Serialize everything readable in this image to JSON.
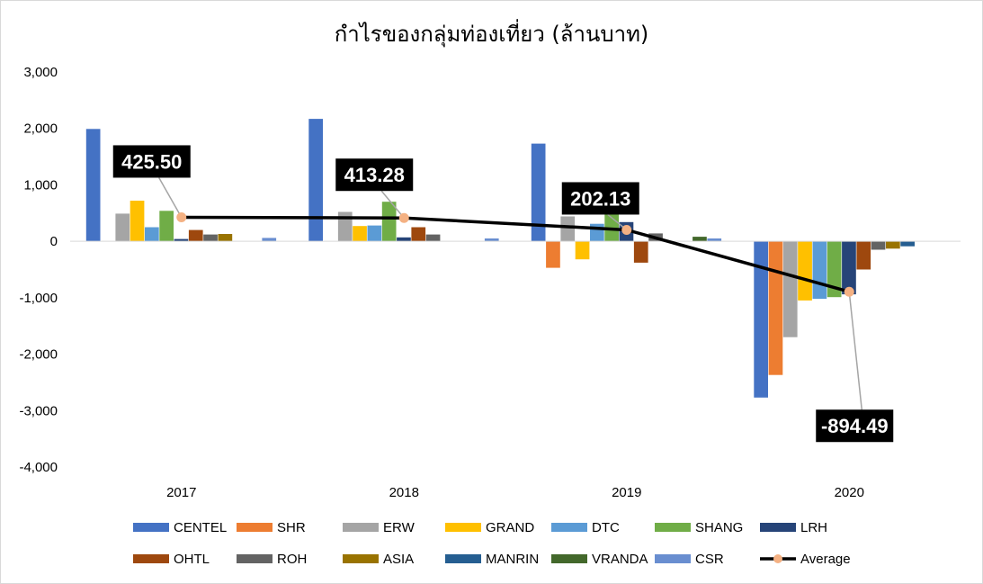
{
  "chart_data": {
    "type": "bar",
    "title": "กำไรของกลุ่มท่องเที่ยว (ล้านบาท)",
    "categories": [
      "2017",
      "2018",
      "2019",
      "2020"
    ],
    "ylim": [
      -4000,
      3000
    ],
    "yticks": [
      3000,
      2000,
      1000,
      0,
      -1000,
      -2000,
      -3000,
      -4000
    ],
    "ytick_labels": [
      "3,000",
      "2,000",
      "1,000",
      "0",
      "-1,000",
      "-2,000",
      "-3,000",
      "-4,000"
    ],
    "grid": false,
    "legend_position": "bottom",
    "series": [
      {
        "name": "CENTEL",
        "color": "#4472c4",
        "values": [
          1990,
          2170,
          1730,
          -2770
        ]
      },
      {
        "name": "SHR",
        "color": "#ed7d31",
        "values": [
          0,
          0,
          -470,
          -2370
        ]
      },
      {
        "name": "ERW",
        "color": "#a5a5a5",
        "values": [
          490,
          520,
          440,
          -1700
        ]
      },
      {
        "name": "GRAND",
        "color": "#ffc000",
        "values": [
          720,
          270,
          -320,
          -1050
        ]
      },
      {
        "name": "DTC",
        "color": "#5b9bd5",
        "values": [
          250,
          280,
          310,
          -1020
        ]
      },
      {
        "name": "SHANG",
        "color": "#70ad47",
        "values": [
          540,
          700,
          640,
          -990
        ]
      },
      {
        "name": "LRH",
        "color": "#264478",
        "values": [
          40,
          70,
          340,
          -940
        ]
      },
      {
        "name": "OHTL",
        "color": "#9e480e",
        "values": [
          200,
          250,
          -380,
          -500
        ]
      },
      {
        "name": "ROH",
        "color": "#636363",
        "values": [
          120,
          120,
          140,
          -150
        ]
      },
      {
        "name": "ASIA",
        "color": "#997300",
        "values": [
          130,
          0,
          0,
          -130
        ]
      },
      {
        "name": "MANRIN",
        "color": "#255e91",
        "values": [
          0,
          0,
          0,
          -90
        ]
      },
      {
        "name": "VRANDA",
        "color": "#43682b",
        "values": [
          0,
          0,
          80,
          0
        ]
      },
      {
        "name": "CSR",
        "color": "#698ed0",
        "values": [
          60,
          50,
          50,
          0
        ]
      }
    ],
    "average": {
      "name": "Average",
      "line_color": "#000000",
      "marker_color": "#f4b183",
      "values": [
        425.5,
        413.28,
        202.13,
        -894.49
      ],
      "labels": [
        "425.50",
        "413.28",
        "202.13",
        "-894.49"
      ]
    }
  }
}
